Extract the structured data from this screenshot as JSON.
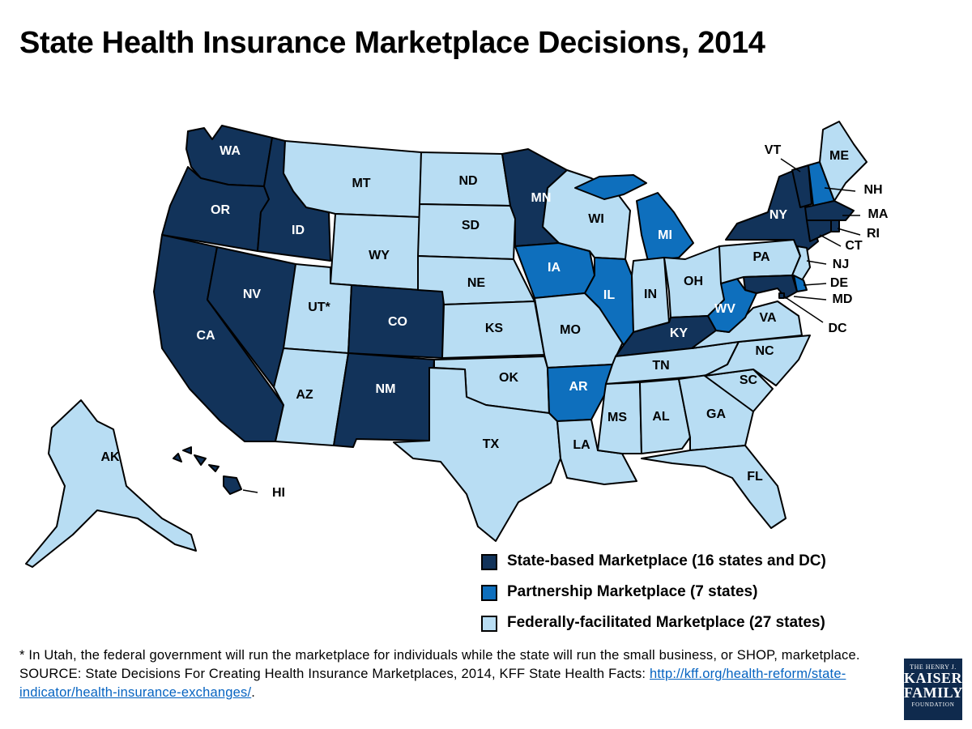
{
  "title": "State Health Insurance Marketplace Decisions, 2014",
  "colors": {
    "state_based": "#12335a",
    "partnership": "#0e6fbd",
    "federal": "#b8ddf3"
  },
  "legend": [
    {
      "key": "state_based",
      "label": "State-based Marketplace (16 states and DC)"
    },
    {
      "key": "partnership",
      "label": "Partnership Marketplace (7 states)"
    },
    {
      "key": "federal",
      "label": "Federally-facilitated Marketplace (27 states)"
    }
  ],
  "states": {
    "WA": "state_based",
    "OR": "state_based",
    "CA": "state_based",
    "NV": "state_based",
    "ID": "state_based",
    "CO": "state_based",
    "NM": "state_based",
    "MN": "state_based",
    "KY": "state_based",
    "NY": "state_based",
    "VT": "state_based",
    "MA": "state_based",
    "RI": "state_based",
    "CT": "state_based",
    "MD": "state_based",
    "HI": "state_based",
    "DC": "state_based",
    "IA": "partnership",
    "IL": "partnership",
    "MI": "partnership",
    "AR": "partnership",
    "WV": "partnership",
    "NH": "partnership",
    "DE": "partnership",
    "MT": "federal",
    "WY": "federal",
    "UT": "federal",
    "AZ": "federal",
    "ND": "federal",
    "SD": "federal",
    "NE": "federal",
    "KS": "federal",
    "OK": "federal",
    "TX": "federal",
    "MO": "federal",
    "LA": "federal",
    "WI": "federal",
    "IN": "federal",
    "OH": "federal",
    "PA": "federal",
    "NJ": "federal",
    "VA": "federal",
    "NC": "federal",
    "SC": "federal",
    "GA": "federal",
    "FL": "federal",
    "AL": "federal",
    "MS": "federal",
    "TN": "federal",
    "ME": "federal",
    "AK": "federal"
  },
  "labels": {
    "WA": "WA",
    "OR": "OR",
    "CA": "CA",
    "NV": "NV",
    "ID": "ID",
    "MT": "MT",
    "WY": "WY",
    "UT": "UT*",
    "AZ": "AZ",
    "CO": "CO",
    "NM": "NM",
    "ND": "ND",
    "SD": "SD",
    "NE": "NE",
    "KS": "KS",
    "OK": "OK",
    "TX": "TX",
    "MN": "MN",
    "IA": "IA",
    "MO": "MO",
    "AR": "AR",
    "LA": "LA",
    "WI": "WI",
    "IL": "IL",
    "MI": "MI",
    "IN": "IN",
    "OH": "OH",
    "KY": "KY",
    "TN": "TN",
    "MS": "MS",
    "AL": "AL",
    "GA": "GA",
    "FL": "FL",
    "SC": "SC",
    "NC": "NC",
    "VA": "VA",
    "WV": "WV",
    "PA": "PA",
    "NY": "NY",
    "VT": "VT",
    "ME": "ME",
    "NH": "NH",
    "MA": "MA",
    "RI": "RI",
    "CT": "CT",
    "NJ": "NJ",
    "DE": "DE",
    "MD": "MD",
    "DC": "DC",
    "AK": "AK",
    "HI": "HI"
  },
  "footnote": {
    "utah_note": "* In Utah, the federal government will run the marketplace for individuals while the state will run the small business, or SHOP, marketplace.",
    "source_prefix": "SOURCE: State Decisions For Creating Health Insurance Marketplaces, 2014, KFF State Health Facts: ",
    "source_link": "http://kff.org/health-reform/state-indicator/health-insurance-exchanges/",
    "source_suffix": "."
  },
  "logo": {
    "line1": "THE HENRY J.",
    "line2": "KAISER",
    "line3": "FAMILY",
    "line4": "FOUNDATION"
  }
}
